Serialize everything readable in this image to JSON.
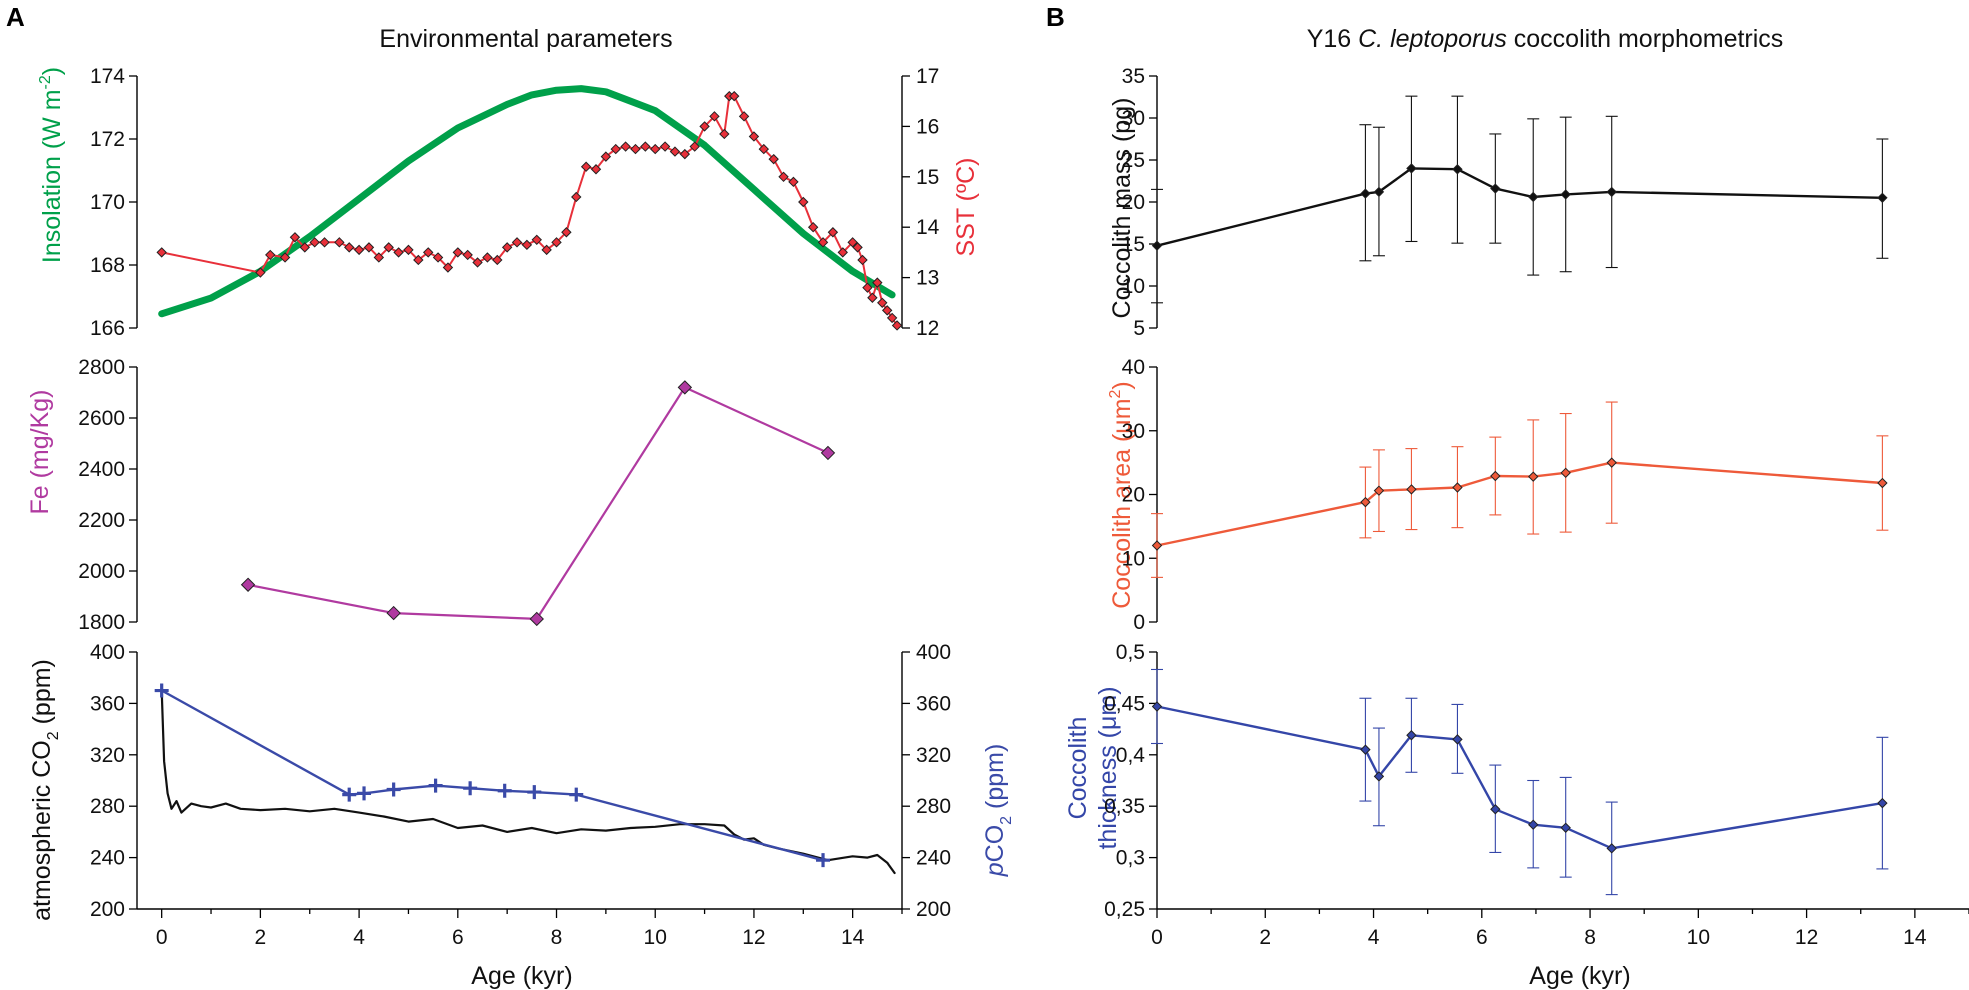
{
  "panel_letters": {
    "a": "A",
    "b": "B"
  },
  "titles": {
    "left": "Environmental parameters",
    "right_prefix": "Y16 ",
    "right_italic": "C. leptoporus",
    "right_suffix": " coccolith morphometrics"
  },
  "axis_labels": {
    "insolation_main": "Insolation (W m",
    "insolation_sup": "-2",
    "insolation_close": ")",
    "sst": "SST (ºC)",
    "fe": "Fe (mg/Kg)",
    "atm_co2_main": "atmospheric CO",
    "atm_co2_sub": "2",
    "atm_co2_unit": " (ppm)",
    "pco2_italic": "p",
    "pco2_main": "CO",
    "pco2_sub": "2",
    "pco2_unit": " (ppm)",
    "mass": "Coccolith mass (pg)",
    "area_main": "Coccolith area (μm",
    "area_sup": "2",
    "area_close": ")",
    "thickness_line1": "Coccolith",
    "thickness_line2": "thickness (μm)",
    "x_left": "Age (kyr)",
    "x_right": "Age (kyr)"
  },
  "colors": {
    "insolation": "#00a04a",
    "sst": "#e8303a",
    "fe": "#b03aa0",
    "atm_co2": "#111111",
    "pco2": "#3a4aa8",
    "mass": "#111111",
    "area": "#ee5a3a",
    "thickness": "#3446a8"
  },
  "chart_data": [
    {
      "id": "insolation_sst",
      "type": "line",
      "title": "Environmental parameters",
      "xlabel": "",
      "xlim": [
        -0.5,
        15
      ],
      "y_left": {
        "label": "Insolation (W m-2)",
        "lim": [
          166,
          174
        ],
        "ticks": [
          "166",
          "168",
          "170",
          "172",
          "174"
        ]
      },
      "y_right": {
        "label": "SST (ºC)",
        "lim": [
          12,
          17
        ],
        "ticks": [
          "12",
          "13",
          "14",
          "15",
          "16",
          "17"
        ]
      },
      "series": [
        {
          "name": "Insolation",
          "axis": "left",
          "style": "thick-line",
          "x": [
            0.0,
            1.0,
            2.0,
            3.0,
            4.0,
            5.0,
            6.0,
            7.0,
            7.5,
            8.0,
            8.5,
            9.0,
            10.0,
            11.0,
            12.0,
            13.0,
            14.0,
            14.8
          ],
          "y": [
            166.45,
            166.95,
            167.8,
            168.9,
            170.1,
            171.3,
            172.35,
            173.1,
            173.4,
            173.55,
            173.6,
            173.5,
            172.9,
            171.8,
            170.4,
            169.0,
            167.8,
            167.05
          ]
        },
        {
          "name": "SST",
          "axis": "right",
          "style": "line-diamond",
          "x": [
            0.0,
            2.0,
            2.2,
            2.5,
            2.7,
            2.9,
            3.1,
            3.3,
            3.6,
            3.8,
            4.0,
            4.2,
            4.4,
            4.6,
            4.8,
            5.0,
            5.2,
            5.4,
            5.6,
            5.8,
            6.0,
            6.2,
            6.4,
            6.6,
            6.8,
            7.0,
            7.2,
            7.4,
            7.6,
            7.8,
            8.0,
            8.2,
            8.4,
            8.6,
            8.8,
            9.0,
            9.2,
            9.4,
            9.6,
            9.8,
            10.0,
            10.2,
            10.4,
            10.6,
            10.8,
            11.0,
            11.2,
            11.4,
            11.5,
            11.6,
            11.8,
            12.0,
            12.2,
            12.4,
            12.6,
            12.8,
            13.0,
            13.2,
            13.4,
            13.6,
            13.8,
            14.0,
            14.1,
            14.2,
            14.3,
            14.4,
            14.5,
            14.6,
            14.7,
            14.8,
            14.9
          ],
          "y": [
            13.5,
            13.1,
            13.45,
            13.4,
            13.8,
            13.6,
            13.7,
            13.7,
            13.7,
            13.6,
            13.55,
            13.6,
            13.4,
            13.6,
            13.5,
            13.55,
            13.35,
            13.5,
            13.4,
            13.2,
            13.5,
            13.45,
            13.3,
            13.4,
            13.35,
            13.6,
            13.7,
            13.65,
            13.75,
            13.55,
            13.7,
            13.9,
            14.6,
            15.2,
            15.15,
            15.4,
            15.55,
            15.6,
            15.55,
            15.6,
            15.55,
            15.6,
            15.5,
            15.45,
            15.6,
            16.0,
            16.2,
            15.85,
            16.6,
            16.6,
            16.2,
            15.8,
            15.55,
            15.35,
            15.0,
            14.9,
            14.5,
            14.0,
            13.7,
            13.9,
            13.5,
            13.7,
            13.6,
            13.35,
            12.8,
            12.6,
            12.9,
            12.5,
            12.35,
            12.2,
            12.05
          ]
        }
      ]
    },
    {
      "id": "fe",
      "type": "line",
      "xlabel": "",
      "xlim": [
        -0.5,
        15
      ],
      "ylabel": "Fe (mg/Kg)",
      "ylim": [
        1800,
        2800
      ],
      "y_ticks": [
        "1800",
        "2000",
        "2200",
        "2400",
        "2600",
        "2800"
      ],
      "series": [
        {
          "name": "Fe",
          "x": [
            1.75,
            4.7,
            7.6,
            10.6,
            13.5
          ],
          "y": [
            1946,
            1835,
            1812,
            2720,
            2463
          ]
        }
      ]
    },
    {
      "id": "co2",
      "type": "line",
      "xlabel": "Age (kyr)",
      "xlim": [
        -0.5,
        15
      ],
      "x_ticks": [
        "0",
        "2",
        "4",
        "6",
        "8",
        "10",
        "12",
        "14"
      ],
      "y_left": {
        "label": "atmospheric CO2 (ppm)",
        "lim": [
          200,
          400
        ],
        "ticks": [
          "200",
          "240",
          "280",
          "320",
          "360",
          "400"
        ]
      },
      "y_right": {
        "label": "pCO2 (ppm)",
        "lim": [
          200,
          400
        ],
        "ticks": [
          "200",
          "240",
          "280",
          "320",
          "360",
          "400"
        ]
      },
      "series": [
        {
          "name": "atmospheric CO2",
          "axis": "left",
          "style": "line",
          "x": [
            0.0,
            0.05,
            0.12,
            0.2,
            0.3,
            0.4,
            0.6,
            0.8,
            1.0,
            1.3,
            1.6,
            2.0,
            2.5,
            3.0,
            3.5,
            4.0,
            4.5,
            5.0,
            5.5,
            6.0,
            6.5,
            7.0,
            7.5,
            8.0,
            8.5,
            9.0,
            9.5,
            10.0,
            10.5,
            11.0,
            11.4,
            11.6,
            11.8,
            12.0,
            12.2,
            12.5,
            13.0,
            13.5,
            14.0,
            14.3,
            14.5,
            14.7,
            14.85
          ],
          "y": [
            370,
            315,
            290,
            278,
            284,
            275,
            282,
            280,
            279,
            282,
            278,
            277,
            278,
            276,
            278,
            275,
            272,
            268,
            270,
            263,
            265,
            260,
            263,
            259,
            262,
            261,
            263,
            264,
            266,
            266,
            265,
            258,
            254,
            255,
            250,
            247,
            243,
            238,
            241,
            240,
            242,
            236,
            228
          ]
        },
        {
          "name": "pCO2",
          "axis": "right",
          "style": "line-cross",
          "x": [
            0.0,
            3.8,
            4.1,
            4.7,
            5.55,
            6.25,
            6.95,
            7.55,
            8.4,
            13.4
          ],
          "y": [
            370,
            289,
            290,
            293,
            296,
            294,
            292,
            291,
            289,
            238
          ]
        }
      ]
    },
    {
      "id": "mass",
      "type": "line",
      "title": "Y16 C. leptoporus coccolith morphometrics",
      "xlabel": "",
      "xlim": [
        0,
        15
      ],
      "ylabel": "Coccolith mass (pg)",
      "ylim": [
        5,
        35
      ],
      "y_ticks": [
        "5",
        "10",
        "15",
        "20",
        "25",
        "30",
        "35"
      ],
      "series": [
        {
          "name": "Coccolith mass",
          "x": [
            0.0,
            3.85,
            4.1,
            4.7,
            5.55,
            6.25,
            6.95,
            7.55,
            8.4,
            13.4
          ],
          "y": [
            14.8,
            21.0,
            21.2,
            24.0,
            23.9,
            21.6,
            20.6,
            20.9,
            21.2,
            20.5
          ],
          "err_low": [
            8.0,
            13.0,
            13.6,
            15.3,
            15.1,
            15.1,
            11.3,
            11.7,
            12.2,
            13.3
          ],
          "err_high": [
            21.5,
            29.2,
            28.9,
            32.6,
            32.6,
            28.1,
            29.9,
            30.1,
            30.2,
            27.5
          ]
        }
      ]
    },
    {
      "id": "area",
      "type": "line",
      "xlabel": "",
      "xlim": [
        0,
        15
      ],
      "ylabel": "Coccolith area (μm2)",
      "ylim": [
        0,
        40
      ],
      "y_ticks": [
        "0",
        "10",
        "20",
        "30",
        "40"
      ],
      "series": [
        {
          "name": "Coccolith area",
          "x": [
            0.0,
            3.85,
            4.1,
            4.7,
            5.55,
            6.25,
            6.95,
            7.55,
            8.4,
            13.4
          ],
          "y": [
            12.0,
            18.8,
            20.6,
            20.8,
            21.1,
            22.9,
            22.8,
            23.4,
            25.0,
            21.8
          ],
          "err_low": [
            7.0,
            13.2,
            14.2,
            14.5,
            14.8,
            16.8,
            13.8,
            14.1,
            15.5,
            14.4
          ],
          "err_high": [
            17.0,
            24.3,
            27.0,
            27.2,
            27.5,
            29.0,
            31.7,
            32.7,
            34.5,
            29.2
          ]
        }
      ]
    },
    {
      "id": "thickness",
      "type": "line",
      "xlabel": "Age (kyr)",
      "xlim": [
        0,
        15
      ],
      "x_ticks": [
        "0",
        "2",
        "4",
        "6",
        "8",
        "10",
        "12",
        "14"
      ],
      "ylabel": "Coccolith thickness (μm)",
      "ylim": [
        0.25,
        0.5
      ],
      "y_ticks": [
        "0,25",
        "0,3",
        "0,35",
        "0,4",
        "0,45",
        "0,5"
      ],
      "series": [
        {
          "name": "Coccolith thickness",
          "x": [
            0.0,
            3.85,
            4.1,
            4.7,
            5.55,
            6.25,
            6.95,
            7.55,
            8.4,
            13.4
          ],
          "y": [
            0.447,
            0.405,
            0.379,
            0.419,
            0.415,
            0.347,
            0.332,
            0.329,
            0.309,
            0.353
          ],
          "err_low": [
            0.411,
            0.355,
            0.331,
            0.383,
            0.382,
            0.305,
            0.29,
            0.281,
            0.264,
            0.289
          ],
          "err_high": [
            0.483,
            0.455,
            0.426,
            0.455,
            0.449,
            0.39,
            0.375,
            0.378,
            0.354,
            0.417
          ]
        }
      ]
    }
  ]
}
